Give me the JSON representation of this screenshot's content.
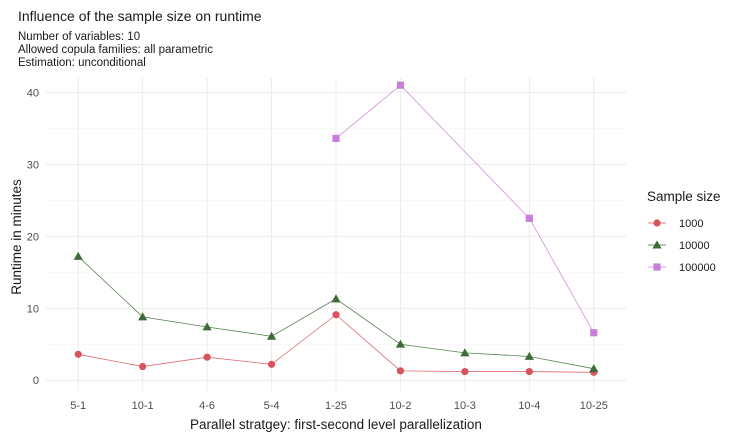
{
  "chart_data": {
    "type": "line",
    "title": "Influence of the sample size on runtime",
    "subtitle": [
      "Number of variables: 10",
      "Allowed copula families: all parametric",
      "Estimation: unconditional"
    ],
    "xlabel": "Parallel stratgey: first-second level parallelization",
    "ylabel": "Runtime in minutes",
    "categories": [
      "5-1",
      "10-1",
      "4-6",
      "5-4",
      "1-25",
      "10-2",
      "10-3",
      "10-4",
      "10-25"
    ],
    "yticks": [
      0,
      10,
      20,
      30,
      40
    ],
    "ylim": [
      -1.5,
      42
    ],
    "grid": true,
    "legend": {
      "title": "Sample size",
      "position": "right"
    },
    "series": [
      {
        "name": "1000",
        "color": "#d9525e",
        "marker": "circle",
        "values": [
          3.6,
          1.9,
          3.2,
          2.2,
          9.1,
          1.3,
          1.2,
          1.2,
          1.1
        ]
      },
      {
        "name": "10000",
        "color": "#3f6b3a",
        "marker": "triangle",
        "values": [
          17.2,
          8.8,
          7.4,
          6.1,
          11.3,
          5.0,
          3.8,
          3.3,
          1.6
        ]
      },
      {
        "name": "100000",
        "color": "#c97fd9",
        "marker": "square",
        "values": [
          null,
          null,
          null,
          null,
          33.6,
          41.0,
          null,
          22.5,
          6.6
        ]
      }
    ]
  }
}
